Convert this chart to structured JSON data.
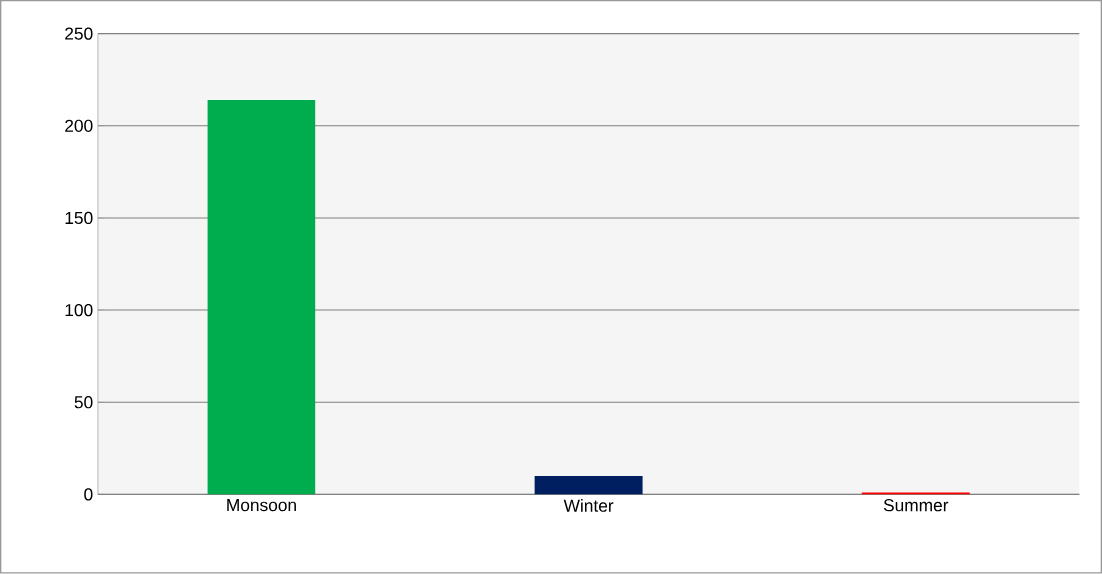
{
  "chart_data": {
    "type": "bar",
    "categories": [
      "Monsoon",
      "Winter",
      "Summer"
    ],
    "values": [
      214,
      10,
      1
    ],
    "colors": [
      "#00ad4e",
      "#001f60",
      "#ff0000"
    ],
    "ylim": [
      0,
      250
    ],
    "yticks": [
      0,
      50,
      100,
      150,
      200,
      250
    ],
    "grid": "y"
  }
}
